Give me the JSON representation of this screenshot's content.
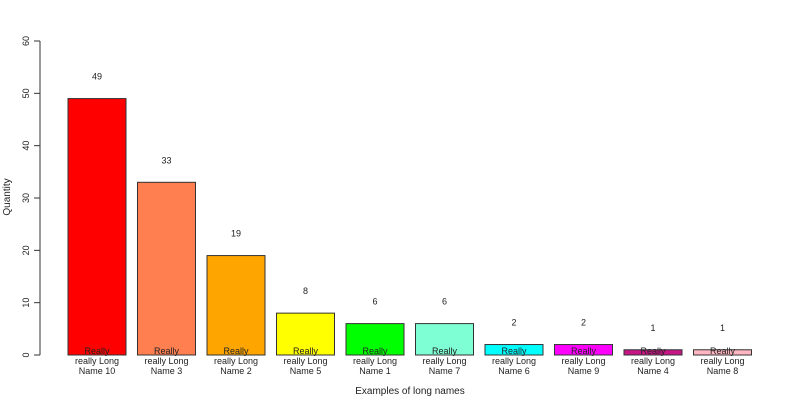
{
  "chart_data": {
    "type": "bar",
    "title": "",
    "xlabel": "Examples of long names",
    "ylabel": "Quantity",
    "ylim": [
      0,
      60
    ],
    "yticks": [
      0,
      10,
      20,
      30,
      40,
      50,
      60
    ],
    "grid": false,
    "legend": "none",
    "categories": [
      [
        "Really",
        "really Long",
        "Name 10"
      ],
      [
        "Really",
        "really Long",
        "Name 3"
      ],
      [
        "Really",
        "really Long",
        "Name 2"
      ],
      [
        "Really",
        "really Long",
        "Name 5"
      ],
      [
        "Really",
        "really Long",
        "Name 1"
      ],
      [
        "Really",
        "really Long",
        "Name 7"
      ],
      [
        "Really",
        "really Long",
        "Name 6"
      ],
      [
        "Really",
        "really Long",
        "Name 9"
      ],
      [
        "Really",
        "really Long",
        "Name 4"
      ],
      [
        "Really",
        "really Long",
        "Name 8"
      ]
    ],
    "values": [
      49,
      33,
      19,
      8,
      6,
      6,
      2,
      2,
      1,
      1
    ],
    "data_labels": [
      "49",
      "33",
      "19",
      "8",
      "6",
      "6",
      "2",
      "2",
      "1",
      "1"
    ],
    "colors": [
      "#ff0000",
      "#ff7f50",
      "#ffa500",
      "#ffff00",
      "#00ff00",
      "#7fffd4",
      "#00ffff",
      "#ff00ff",
      "#c71585",
      "#ffb6c1"
    ]
  }
}
